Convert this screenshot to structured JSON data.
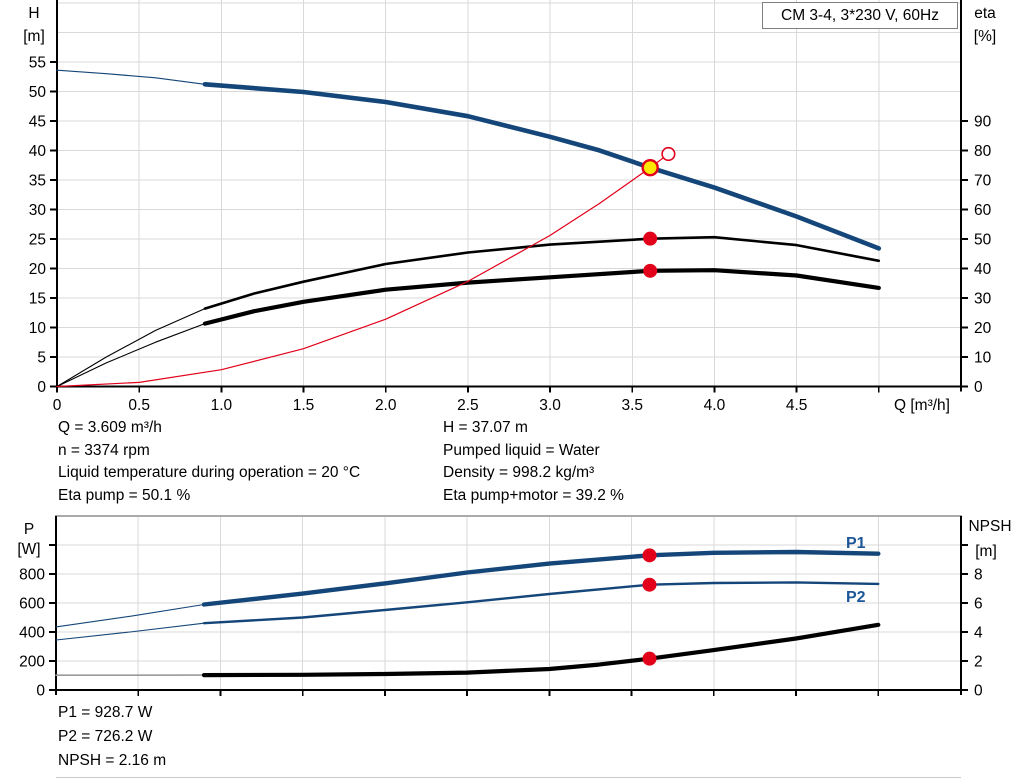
{
  "title_box": {
    "label": "CM 3-4, 3*230 V, 60Hz"
  },
  "top_chart": {
    "left_axis_title": [
      "H",
      "[m]"
    ],
    "right_axis_title": [
      "eta",
      "[%]"
    ]
  },
  "bottom_chart": {
    "left_axis_title": [
      "P",
      "[W]"
    ],
    "right_axis_title": [
      "NPSH",
      "[m]"
    ],
    "p1_label": "P1",
    "p2_label": "P2"
  },
  "readouts": {
    "top_left": [
      "Q = 3.609 m³/h",
      "n = 3374 rpm",
      "Liquid temperature during operation = 20 °C",
      "Eta pump = 50.1 %"
    ],
    "top_right": [
      "H = 37.07 m",
      "Pumped liquid = Water",
      "Density = 998.2 kg/m³",
      "Eta pump+motor = 39.2 %"
    ],
    "bottom": [
      "P1 = 928.7 W",
      "P2 = 726.2 W",
      "NPSH = 2.16 m"
    ]
  },
  "colors": {
    "curve_blue": "#154679",
    "red": "#e2001a",
    "yellow": "#ffe800",
    "grid": "#d9d9d9",
    "gray_curve": "#9b9b9b",
    "axis": "#000000",
    "label_blue": "#1c5698",
    "white": "#ffffff"
  },
  "chart_data": [
    {
      "type": "line",
      "title": "CM 3-4, 3*230 V, 60Hz",
      "xlabel": "Q [m³/h]",
      "x_range": [
        0,
        5.5
      ],
      "left_axis": {
        "label": "H [m]",
        "range": [
          0,
          65.5
        ],
        "ticks": [
          [
            0,
            "0"
          ],
          [
            5,
            "5"
          ],
          [
            10,
            "10"
          ],
          [
            15,
            "15"
          ],
          [
            20,
            "20"
          ],
          [
            25,
            "25"
          ],
          [
            30,
            "30"
          ],
          [
            35,
            "35"
          ],
          [
            40,
            "40"
          ],
          [
            45,
            "45"
          ],
          [
            50,
            "50"
          ],
          [
            55,
            "55"
          ]
        ],
        "grid_extra": [
          60,
          65
        ]
      },
      "right_axis": {
        "label": "eta [%]",
        "range": [
          0,
          131
        ],
        "ticks": [
          [
            0,
            "0"
          ],
          [
            10,
            "10"
          ],
          [
            20,
            "20"
          ],
          [
            30,
            "30"
          ],
          [
            40,
            "40"
          ],
          [
            50,
            "50"
          ],
          [
            60,
            "60"
          ],
          [
            70,
            "70"
          ],
          [
            80,
            "80"
          ],
          [
            90,
            "90"
          ]
        ]
      },
      "x_ticks": [
        [
          0,
          "0"
        ],
        [
          0.5,
          "0.5"
        ],
        [
          1,
          "1.0"
        ],
        [
          1.5,
          "1.5"
        ],
        [
          2,
          "2.0"
        ],
        [
          2.5,
          "2.5"
        ],
        [
          3,
          "3.0"
        ],
        [
          3.5,
          "3.5"
        ],
        [
          4,
          "4.0"
        ],
        [
          4.5,
          "4.5"
        ],
        [
          5,
          ""
        ]
      ],
      "series": [
        {
          "name": "head-thin",
          "axis": "left",
          "color": "curve_blue",
          "width": 1.2,
          "points": [
            [
              0,
              53.6
            ],
            [
              0.3,
              53.0
            ],
            [
              0.6,
              52.3
            ],
            [
              0.9,
              51.2
            ]
          ]
        },
        {
          "name": "head",
          "axis": "left",
          "color": "curve_blue",
          "width": 4.6,
          "points": [
            [
              0.9,
              51.2
            ],
            [
              1.5,
              49.9
            ],
            [
              2,
              48.2
            ],
            [
              2.5,
              45.8
            ],
            [
              3,
              42.3
            ],
            [
              3.3,
              40.0
            ],
            [
              3.609,
              37.07
            ],
            [
              4,
              33.7
            ],
            [
              4.5,
              28.8
            ],
            [
              5,
              23.4
            ]
          ]
        },
        {
          "name": "eta-pump-thin",
          "axis": "right",
          "color": "axis",
          "width": 1.1,
          "points": [
            [
              0,
              0
            ],
            [
              0.3,
              10
            ],
            [
              0.6,
              19
            ],
            [
              0.9,
              26.4
            ]
          ]
        },
        {
          "name": "eta-pump",
          "axis": "right",
          "color": "axis",
          "width": 2.6,
          "points": [
            [
              0.9,
              26.4
            ],
            [
              1.2,
              31.5
            ],
            [
              1.5,
              35.5
            ],
            [
              2,
              41.5
            ],
            [
              2.5,
              45.4
            ],
            [
              3,
              48.1
            ],
            [
              3.609,
              50.1
            ],
            [
              4,
              50.6
            ],
            [
              4.5,
              47.9
            ],
            [
              5,
              42.6
            ]
          ]
        },
        {
          "name": "eta-pump-motor-thin",
          "axis": "right",
          "color": "axis",
          "width": 1.1,
          "points": [
            [
              0,
              0
            ],
            [
              0.3,
              8
            ],
            [
              0.6,
              15
            ],
            [
              0.9,
              21.3
            ]
          ]
        },
        {
          "name": "eta-pump-motor",
          "axis": "right",
          "color": "axis",
          "width": 4.2,
          "points": [
            [
              0.9,
              21.3
            ],
            [
              1.2,
              25.5
            ],
            [
              1.5,
              28.7
            ],
            [
              2,
              32.8
            ],
            [
              2.5,
              35.2
            ],
            [
              3,
              37.0
            ],
            [
              3.609,
              39.2
            ],
            [
              4,
              39.4
            ],
            [
              4.5,
              37.6
            ],
            [
              5,
              33.4
            ]
          ]
        },
        {
          "name": "system-curve",
          "axis": "left",
          "color": "red",
          "width": 1.2,
          "points": [
            [
              0,
              0
            ],
            [
              0.5,
              0.7
            ],
            [
              1,
              2.85
            ],
            [
              1.5,
              6.4
            ],
            [
              2,
              11.4
            ],
            [
              2.5,
              17.8
            ],
            [
              3,
              25.6
            ],
            [
              3.3,
              31.0
            ],
            [
              3.609,
              37.07
            ],
            [
              3.72,
              39.4
            ]
          ]
        }
      ],
      "markers": [
        {
          "name": "requested-duty-point",
          "kind": "ring",
          "axis": "left",
          "q": 3.72,
          "v": 39.4,
          "r": 6.3,
          "stroke": "red",
          "stroke_width": 1.6,
          "fill": "white"
        },
        {
          "name": "operating-point",
          "kind": "dot",
          "axis": "left",
          "q": 3.609,
          "v": 37.07,
          "r": 7.5,
          "stroke": "red",
          "stroke_width": 2.4,
          "fill": "yellow"
        },
        {
          "name": "eta-pump-point",
          "kind": "dot",
          "axis": "right",
          "q": 3.609,
          "v": 50.1,
          "r": 7,
          "fill": "red"
        },
        {
          "name": "eta-pump-motor-point",
          "kind": "dot",
          "axis": "right",
          "q": 3.609,
          "v": 39.2,
          "r": 7,
          "fill": "red"
        }
      ],
      "operating_point": {
        "Q": "3.609 m³/h",
        "H": "37.07 m",
        "eta_pump": "50.1 %",
        "eta_pump_motor": "39.2 %",
        "n": "3374 rpm"
      }
    },
    {
      "type": "line",
      "x_range": [
        0,
        5.5
      ],
      "left_axis": {
        "label": "P [W]",
        "range": [
          0,
          1200
        ],
        "ticks": [
          [
            0,
            "0"
          ],
          [
            200,
            "200"
          ],
          [
            400,
            "400"
          ],
          [
            600,
            "600"
          ],
          [
            800,
            "800"
          ],
          [
            1000,
            ""
          ]
        ],
        "grid_extra": [
          1200
        ]
      },
      "right_axis": {
        "label": "NPSH [m]",
        "range": [
          0,
          12
        ],
        "ticks": [
          [
            0,
            "0"
          ],
          [
            2,
            "2"
          ],
          [
            4,
            "4"
          ],
          [
            6,
            "6"
          ],
          [
            8,
            "8"
          ],
          [
            10,
            ""
          ]
        ]
      },
      "x_ticks": [
        [
          0.5,
          ""
        ],
        [
          1,
          ""
        ],
        [
          1.5,
          ""
        ],
        [
          2,
          ""
        ],
        [
          2.5,
          ""
        ],
        [
          3,
          ""
        ],
        [
          3.5,
          ""
        ],
        [
          4,
          ""
        ],
        [
          4.5,
          ""
        ],
        [
          5,
          ""
        ]
      ],
      "series": [
        {
          "name": "p1-thin",
          "axis": "left",
          "color": "curve_blue",
          "width": 1.1,
          "points": [
            [
              0,
              435
            ],
            [
              0.45,
              508
            ],
            [
              0.9,
              590
            ]
          ]
        },
        {
          "name": "p1",
          "axis": "left",
          "color": "curve_blue",
          "width": 4.4,
          "points": [
            [
              0.9,
              590
            ],
            [
              1.5,
              665
            ],
            [
              2,
              735
            ],
            [
              2.5,
              810
            ],
            [
              3,
              872
            ],
            [
              3.609,
              928.7
            ],
            [
              4,
              946
            ],
            [
              4.5,
              952
            ],
            [
              5,
              940
            ]
          ]
        },
        {
          "name": "p2-thin",
          "axis": "left",
          "color": "curve_blue",
          "width": 1.1,
          "points": [
            [
              0,
              345
            ],
            [
              0.45,
              400
            ],
            [
              0.9,
              461
            ]
          ]
        },
        {
          "name": "p2",
          "axis": "left",
          "color": "curve_blue",
          "width": 2.4,
          "points": [
            [
              0.9,
              461
            ],
            [
              1.5,
              500
            ],
            [
              2,
              552
            ],
            [
              2.5,
              605
            ],
            [
              3,
              662
            ],
            [
              3.609,
              726.2
            ],
            [
              4,
              738
            ],
            [
              4.5,
              742
            ],
            [
              5,
              732
            ]
          ]
        },
        {
          "name": "npsh-thin",
          "axis": "right",
          "color": "gray_curve",
          "width": 1.6,
          "points": [
            [
              0,
              1.02
            ],
            [
              0.45,
              1.02
            ],
            [
              0.9,
              1.03
            ]
          ]
        },
        {
          "name": "npsh",
          "axis": "right",
          "color": "axis",
          "width": 4.2,
          "points": [
            [
              0.9,
              1.03
            ],
            [
              1.5,
              1.05
            ],
            [
              2,
              1.1
            ],
            [
              2.5,
              1.2
            ],
            [
              3,
              1.45
            ],
            [
              3.3,
              1.75
            ],
            [
              3.609,
              2.16
            ],
            [
              4,
              2.75
            ],
            [
              4.5,
              3.55
            ],
            [
              5,
              4.5
            ]
          ]
        }
      ],
      "markers": [
        {
          "name": "p1-point",
          "kind": "dot",
          "axis": "left",
          "q": 3.609,
          "v": 928.7,
          "r": 7,
          "fill": "red"
        },
        {
          "name": "p2-point",
          "kind": "dot",
          "axis": "left",
          "q": 3.609,
          "v": 726.2,
          "r": 7,
          "fill": "red"
        },
        {
          "name": "npsh-point",
          "kind": "dot",
          "axis": "right",
          "q": 3.609,
          "v": 2.16,
          "r": 7,
          "fill": "red"
        }
      ],
      "operating_point": {
        "P1": "928.7 W",
        "P2": "726.2 W",
        "NPSH": "2.16 m"
      }
    }
  ]
}
